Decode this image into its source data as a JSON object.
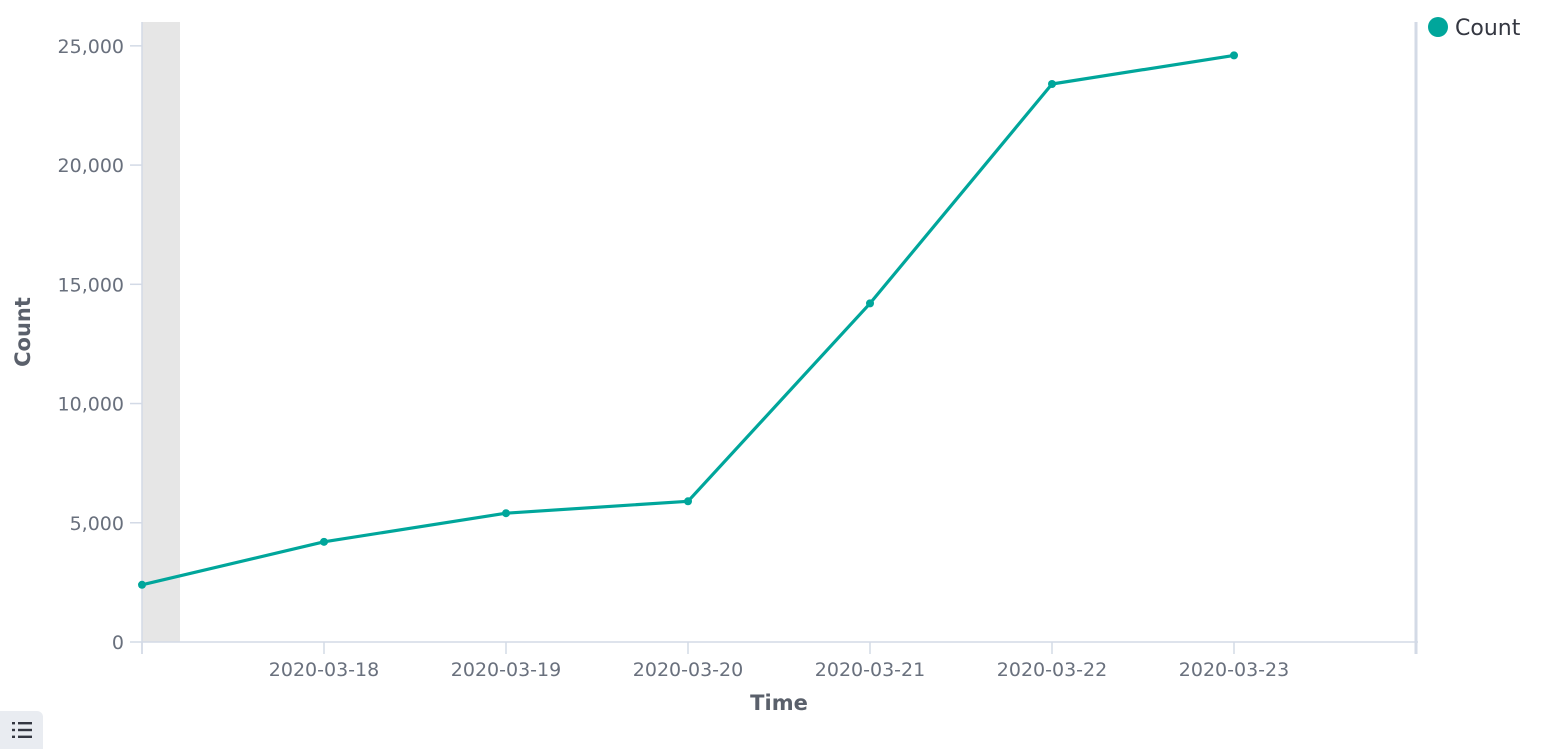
{
  "chart_data": {
    "type": "line",
    "xlabel": "Time",
    "ylabel": "Count",
    "x": [
      "2020-03-17",
      "2020-03-18",
      "2020-03-19",
      "2020-03-20",
      "2020-03-21",
      "2020-03-22",
      "2020-03-23"
    ],
    "x_tick_labels": [
      "2020-03-18",
      "2020-03-19",
      "2020-03-20",
      "2020-03-21",
      "2020-03-22",
      "2020-03-23"
    ],
    "y_ticks": [
      0,
      5000,
      10000,
      15000,
      20000,
      25000
    ],
    "y_tick_labels": [
      "0",
      "5,000",
      "10,000",
      "15,000",
      "20,000",
      "25,000"
    ],
    "ylim": [
      0,
      26000
    ],
    "xlim": [
      "2020-03-17",
      "2020-03-24"
    ],
    "shaded_range": [
      "2020-03-17",
      "2020-03-17 12:00"
    ],
    "grid": false,
    "legend_position": "top-right",
    "series": [
      {
        "name": "Count",
        "color": "#00a69b",
        "values": [
          2400,
          4200,
          5400,
          5900,
          14200,
          23400,
          24600
        ]
      }
    ]
  },
  "legend_toggle_icon": "list-icon"
}
